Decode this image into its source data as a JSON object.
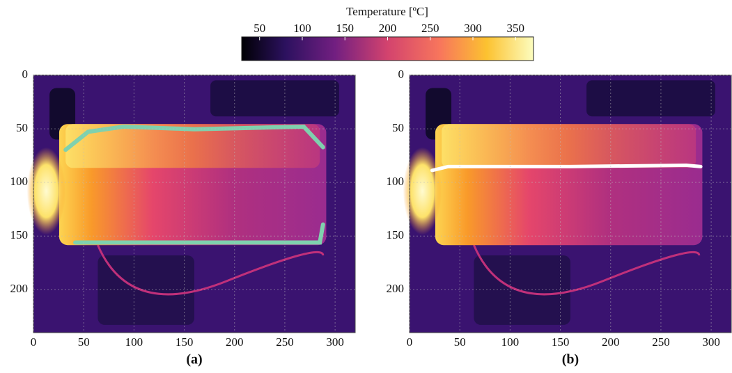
{
  "colorbar": {
    "label": "Temperature [ºC]",
    "lim": [
      29,
      371
    ],
    "ticks": [
      50,
      100,
      150,
      200,
      250,
      300,
      350
    ]
  },
  "panels": [
    {
      "label": "(a)",
      "xlim": [
        0,
        320
      ],
      "ylim": [
        0,
        240
      ],
      "xticks": [
        0,
        50,
        100,
        150,
        200,
        250,
        300
      ],
      "yticks": [
        0,
        50,
        100,
        150,
        200
      ]
    },
    {
      "label": "(b)",
      "xlim": [
        0,
        320
      ],
      "ylim": [
        0,
        240
      ],
      "xticks": [
        0,
        50,
        100,
        150,
        200,
        250,
        300
      ],
      "yticks": [
        0,
        50,
        100,
        150,
        200
      ]
    }
  ]
}
